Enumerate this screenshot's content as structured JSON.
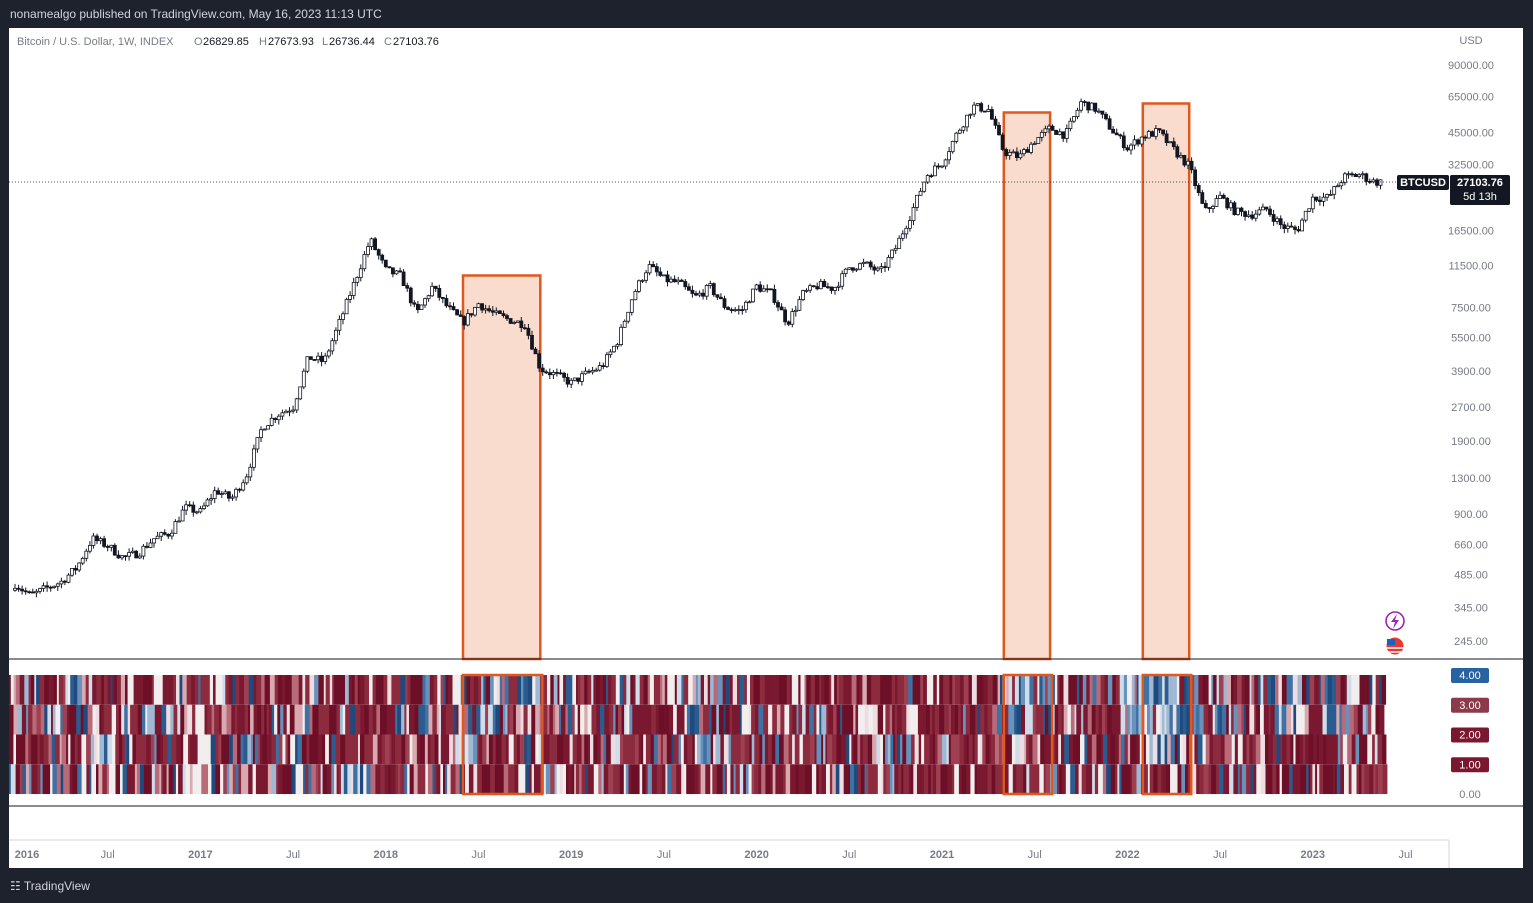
{
  "header": {
    "publish_line": "nonamealgo published on TradingView.com, May 16, 2023 11:13 UTC"
  },
  "legend": {
    "symbol": "Bitcoin / U.S. Dollar, 1W, INDEX",
    "o_label": "O",
    "o_value": "26829.85",
    "h_label": "H",
    "h_value": "27673.93",
    "l_label": "L",
    "l_value": "26736.44",
    "c_label": "C",
    "c_value": "27103.76"
  },
  "price_axis": {
    "currency": "USD",
    "ticks": [
      "90000.00",
      "65000.00",
      "45000.00",
      "32500.00",
      "16500.00",
      "11500.00",
      "7500.00",
      "5500.00",
      "3900.00",
      "2700.00",
      "1900.00",
      "1300.00",
      "900.00",
      "660.00",
      "485.00",
      "345.00",
      "245.00"
    ],
    "tick_values": [
      90000,
      65000,
      45000,
      32500,
      16500,
      11500,
      7500,
      5500,
      3900,
      2700,
      1900,
      1300,
      900,
      660,
      485,
      345,
      245
    ],
    "last_symbol": "BTCUSD",
    "last_price": "27103.76",
    "countdown": "5d 13h"
  },
  "indicator_axis": {
    "ticks": [
      "4.00",
      "3.00",
      "2.00",
      "1.00",
      "0.00"
    ],
    "colors": [
      "#2962a0",
      "#8c3a4a",
      "#7a1830",
      "#7a1830",
      ""
    ]
  },
  "time_axis": {
    "ticks": [
      "2016",
      "Jul",
      "2017",
      "Jul",
      "2018",
      "Jul",
      "2019",
      "Jul",
      "2020",
      "Jul",
      "2021",
      "Jul",
      "2022",
      "Jul",
      "2023",
      "Jul"
    ],
    "bold": [
      true,
      false,
      true,
      false,
      true,
      false,
      true,
      false,
      true,
      false,
      true,
      false,
      true,
      false,
      true,
      false
    ]
  },
  "footer": {
    "brand": "TradingView"
  },
  "chart_data": {
    "type": "candlestick",
    "scale": "log",
    "timeframe": "1W",
    "x_range": [
      "2016-01",
      "2023-07"
    ],
    "y_range": [
      245,
      90000
    ],
    "path_points": [
      [
        "2016-01",
        440
      ],
      [
        "2016-02",
        390
      ],
      [
        "2016-03",
        420
      ],
      [
        "2016-04",
        450
      ],
      [
        "2016-05",
        520
      ],
      [
        "2016-06",
        700
      ],
      [
        "2016-07",
        650
      ],
      [
        "2016-08",
        575
      ],
      [
        "2016-09",
        605
      ],
      [
        "2016-10",
        700
      ],
      [
        "2016-11",
        740
      ],
      [
        "2016-12",
        960
      ],
      [
        "2017-01",
        920
      ],
      [
        "2017-02",
        1150
      ],
      [
        "2017-03",
        1050
      ],
      [
        "2017-04",
        1350
      ],
      [
        "2017-05",
        2200
      ],
      [
        "2017-06",
        2500
      ],
      [
        "2017-07",
        2700
      ],
      [
        "2017-08",
        4500
      ],
      [
        "2017-09",
        4300
      ],
      [
        "2017-10",
        6400
      ],
      [
        "2017-11",
        9800
      ],
      [
        "2017-12",
        15000
      ],
      [
        "2018-01",
        11000
      ],
      [
        "2018-02",
        10300
      ],
      [
        "2018-03",
        7000
      ],
      [
        "2018-04",
        9200
      ],
      [
        "2018-05",
        7500
      ],
      [
        "2018-06",
        6400
      ],
      [
        "2018-07",
        7800
      ],
      [
        "2018-08",
        7000
      ],
      [
        "2018-09",
        6600
      ],
      [
        "2018-10",
        6300
      ],
      [
        "2018-11",
        4000
      ],
      [
        "2018-12",
        3750
      ],
      [
        "2019-01",
        3450
      ],
      [
        "2019-02",
        3800
      ],
      [
        "2019-03",
        4100
      ],
      [
        "2019-04",
        5300
      ],
      [
        "2019-05",
        8500
      ],
      [
        "2019-06",
        11500
      ],
      [
        "2019-07",
        10000
      ],
      [
        "2019-08",
        9600
      ],
      [
        "2019-09",
        8300
      ],
      [
        "2019-10",
        9200
      ],
      [
        "2019-11",
        7500
      ],
      [
        "2019-12",
        7200
      ],
      [
        "2020-01",
        9300
      ],
      [
        "2020-02",
        8600
      ],
      [
        "2020-03",
        6400
      ],
      [
        "2020-04",
        8600
      ],
      [
        "2020-05",
        9400
      ],
      [
        "2020-06",
        9100
      ],
      [
        "2020-07",
        11300
      ],
      [
        "2020-08",
        11700
      ],
      [
        "2020-09",
        10700
      ],
      [
        "2020-10",
        13800
      ],
      [
        "2020-11",
        19600
      ],
      [
        "2020-12",
        29000
      ],
      [
        "2021-01",
        33000
      ],
      [
        "2021-02",
        45000
      ],
      [
        "2021-03",
        58800
      ],
      [
        "2021-04",
        57000
      ],
      [
        "2021-05",
        37000
      ],
      [
        "2021-06",
        35000
      ],
      [
        "2021-07",
        41500
      ],
      [
        "2021-08",
        47100
      ],
      [
        "2021-09",
        43800
      ],
      [
        "2021-10",
        61300
      ],
      [
        "2021-11",
        57000
      ],
      [
        "2021-12",
        46300
      ],
      [
        "2022-01",
        38500
      ],
      [
        "2022-02",
        43200
      ],
      [
        "2022-03",
        45500
      ],
      [
        "2022-04",
        37700
      ],
      [
        "2022-05",
        31800
      ],
      [
        "2022-06",
        19900
      ],
      [
        "2022-07",
        23300
      ],
      [
        "2022-08",
        20000
      ],
      [
        "2022-09",
        19400
      ],
      [
        "2022-10",
        20500
      ],
      [
        "2022-11",
        17200
      ],
      [
        "2022-12",
        16500
      ],
      [
        "2023-01",
        23100
      ],
      [
        "2023-02",
        23100
      ],
      [
        "2023-03",
        28500
      ],
      [
        "2023-04",
        29200
      ],
      [
        "2023-05",
        27100
      ]
    ],
    "last_close": 27103.76,
    "highlight_ranges": [
      [
        "2018-06",
        "2018-10"
      ],
      [
        "2021-05",
        "2021-07"
      ],
      [
        "2022-02",
        "2022-04"
      ]
    ],
    "indicator": {
      "type": "heatmap",
      "y_range": [
        0,
        4
      ],
      "rows": [
        "4.00",
        "3.00",
        "2.00",
        "1.00"
      ],
      "x_range": [
        "2016-01",
        "2023-05"
      ]
    }
  }
}
